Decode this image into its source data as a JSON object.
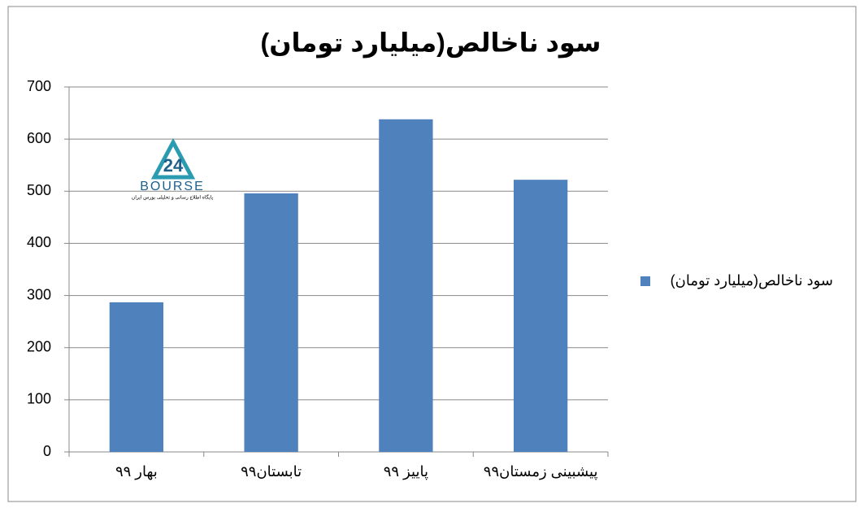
{
  "chart_data": {
    "type": "bar",
    "title": "سود ناخالص(میلیارد تومان)",
    "categories": [
      "بهار ۹۹",
      "تابستان۹۹",
      "پاییز ۹۹",
      "پیشبینی زمستان۹۹"
    ],
    "series": [
      {
        "name": "سود ناخالص(میلیارد تومان)",
        "color": "#4f81bd",
        "values": [
          287,
          496,
          638,
          522
        ]
      }
    ],
    "ylim": [
      0,
      700
    ],
    "yticks": [
      0,
      100,
      200,
      300,
      400,
      500,
      600,
      700
    ],
    "grid": true,
    "legend": "right",
    "logo": {
      "mark": "24",
      "name": "BOURSE",
      "tagline": "پایگاه اطلاع رسانی و تحلیلی بورس ایران"
    }
  }
}
